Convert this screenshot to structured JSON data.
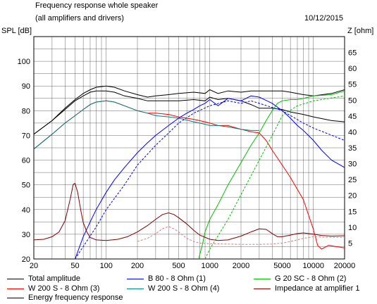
{
  "header": {
    "title": "Frequency response whole speaker",
    "subtitle": "(all amplifiers and drivers)",
    "date": "10/12/2015"
  },
  "chart_data": {
    "type": "line",
    "title": "Frequency response whole speaker",
    "subtitle": "(all amplifiers and drivers)",
    "ylabel_left": "SPL [dB]",
    "ylabel_right": "Z [ohm]",
    "x_scale": "log",
    "xlim": [
      20,
      20000
    ],
    "ylim_left": [
      20,
      110
    ],
    "ylim_right": [
      0,
      70
    ],
    "grid": true,
    "x_ticks": [
      {
        "v": 20,
        "label": "20"
      },
      {
        "v": 50,
        "label": "50"
      },
      {
        "v": 100,
        "label": "100"
      },
      {
        "v": 200,
        "label": "200"
      },
      {
        "v": 500,
        "label": "500"
      },
      {
        "v": 1000,
        "label": "1000"
      },
      {
        "v": 2000,
        "label": "2000"
      },
      {
        "v": 5000,
        "label": "5000"
      },
      {
        "v": 10000,
        "label": "10000"
      },
      {
        "v": 20000,
        "label": "20000"
      }
    ],
    "y_ticks_left": [
      20,
      30,
      40,
      50,
      60,
      70,
      80,
      90,
      100
    ],
    "y_ticks_right": [
      5,
      10,
      15,
      20,
      25,
      30,
      35,
      40,
      45,
      50,
      55,
      60,
      65
    ],
    "series": [
      {
        "name": "Total amplitude",
        "axis": "left",
        "color": "#000000",
        "dash": false,
        "points": [
          [
            20,
            70.5
          ],
          [
            30,
            76
          ],
          [
            40,
            81
          ],
          [
            50,
            84.5
          ],
          [
            60,
            87
          ],
          [
            70,
            88.5
          ],
          [
            80,
            89.5
          ],
          [
            100,
            90
          ],
          [
            120,
            89.5
          ],
          [
            150,
            88
          ],
          [
            200,
            86.5
          ],
          [
            250,
            85.5
          ],
          [
            300,
            86
          ],
          [
            400,
            86.5
          ],
          [
            500,
            87
          ],
          [
            700,
            87.5
          ],
          [
            900,
            87
          ],
          [
            1000,
            88.5
          ],
          [
            1200,
            87
          ],
          [
            1500,
            88
          ],
          [
            2000,
            87.5
          ],
          [
            2500,
            88
          ],
          [
            3000,
            88
          ],
          [
            4000,
            88
          ],
          [
            5000,
            88
          ],
          [
            6000,
            87.5
          ],
          [
            8000,
            86.5
          ],
          [
            10000,
            86
          ],
          [
            15000,
            87
          ],
          [
            20000,
            88.5
          ]
        ]
      },
      {
        "name": "Energy frequency response",
        "axis": "left",
        "color": "#000000",
        "dash": false,
        "points": [
          [
            20,
            70.5
          ],
          [
            30,
            76
          ],
          [
            40,
            80.5
          ],
          [
            50,
            84
          ],
          [
            60,
            86
          ],
          [
            70,
            87.5
          ],
          [
            80,
            88
          ],
          [
            100,
            88
          ],
          [
            120,
            87.5
          ],
          [
            150,
            86
          ],
          [
            200,
            85
          ],
          [
            250,
            84
          ],
          [
            300,
            84
          ],
          [
            400,
            84
          ],
          [
            500,
            84
          ],
          [
            700,
            84.5
          ],
          [
            900,
            84
          ],
          [
            1000,
            85.5
          ],
          [
            1200,
            84.5
          ],
          [
            1500,
            85
          ],
          [
            2000,
            84
          ],
          [
            2500,
            82.5
          ],
          [
            3000,
            81
          ],
          [
            4000,
            81
          ],
          [
            5000,
            80.5
          ],
          [
            6000,
            79.5
          ],
          [
            8000,
            78.5
          ],
          [
            10000,
            77.5
          ],
          [
            15000,
            76
          ],
          [
            20000,
            75.5
          ]
        ]
      },
      {
        "name": "W 200 S - 8 Ohm (3)",
        "axis": "left",
        "color": "#ff0000",
        "dash": false,
        "points": [
          [
            20,
            64.5
          ],
          [
            30,
            70.5
          ],
          [
            40,
            75
          ],
          [
            50,
            78
          ],
          [
            60,
            80.5
          ],
          [
            70,
            82.5
          ],
          [
            80,
            83.5
          ],
          [
            100,
            84
          ],
          [
            120,
            83.5
          ],
          [
            150,
            82
          ],
          [
            200,
            80
          ],
          [
            250,
            79
          ],
          [
            300,
            79
          ],
          [
            400,
            78.5
          ],
          [
            500,
            77.5
          ],
          [
            700,
            76.5
          ],
          [
            900,
            75.5
          ],
          [
            1000,
            75
          ],
          [
            1200,
            74
          ],
          [
            1500,
            74
          ],
          [
            2000,
            72.5
          ],
          [
            2500,
            71.5
          ],
          [
            3000,
            71
          ],
          [
            3500,
            68
          ],
          [
            4000,
            64
          ],
          [
            5000,
            58
          ],
          [
            6000,
            53
          ],
          [
            8000,
            44
          ],
          [
            10000,
            32
          ],
          [
            11000,
            25.5
          ],
          [
            12000,
            24
          ],
          [
            14000,
            25.5
          ],
          [
            20000,
            24.5
          ]
        ]
      },
      {
        "name": "W 200 S - 8 Ohm (4)",
        "axis": "left",
        "color": "#008080",
        "dash": false,
        "points": [
          [
            20,
            64.5
          ],
          [
            30,
            70.5
          ],
          [
            40,
            75
          ],
          [
            50,
            78
          ],
          [
            60,
            80.5
          ],
          [
            70,
            82.5
          ],
          [
            80,
            83.5
          ],
          [
            100,
            84
          ],
          [
            120,
            83.5
          ],
          [
            150,
            82
          ],
          [
            200,
            80
          ],
          [
            250,
            79
          ],
          [
            300,
            78
          ],
          [
            400,
            77.5
          ],
          [
            500,
            77
          ],
          [
            700,
            75.5
          ],
          [
            900,
            74.5
          ],
          [
            1000,
            74
          ],
          [
            1200,
            74
          ],
          [
            1500,
            73.5
          ],
          [
            2000,
            72.5
          ],
          [
            2500,
            72
          ],
          [
            3000,
            72
          ]
        ]
      },
      {
        "name": "B 80 - 8 Ohm (1)",
        "axis": "left",
        "color": "#0000ff",
        "dash": false,
        "points": [
          [
            50,
            20
          ],
          [
            60,
            29
          ],
          [
            70,
            35
          ],
          [
            80,
            40
          ],
          [
            100,
            47
          ],
          [
            120,
            52
          ],
          [
            150,
            57
          ],
          [
            200,
            63
          ],
          [
            250,
            67
          ],
          [
            300,
            70
          ],
          [
            400,
            74
          ],
          [
            500,
            77
          ],
          [
            600,
            79
          ],
          [
            700,
            80.5
          ],
          [
            800,
            82
          ],
          [
            900,
            83
          ],
          [
            1000,
            84.5
          ],
          [
            1200,
            82
          ],
          [
            1500,
            85
          ],
          [
            2000,
            84
          ],
          [
            2500,
            86
          ],
          [
            3000,
            85.5
          ],
          [
            4000,
            83
          ],
          [
            5000,
            80
          ],
          [
            6000,
            77
          ],
          [
            7000,
            74
          ],
          [
            8000,
            72
          ],
          [
            10000,
            68
          ],
          [
            12000,
            64
          ],
          [
            15000,
            60
          ],
          [
            20000,
            57
          ]
        ]
      },
      {
        "name": "B 80 - 8 Ohm (1) dashed",
        "axis": "left",
        "color": "#0000ff",
        "dash": true,
        "points": [
          [
            50,
            20
          ],
          [
            60,
            25
          ],
          [
            80,
            33
          ],
          [
            100,
            40
          ],
          [
            150,
            50
          ],
          [
            200,
            58
          ],
          [
            300,
            66
          ],
          [
            400,
            71
          ],
          [
            500,
            75
          ],
          [
            700,
            79
          ],
          [
            1000,
            82
          ],
          [
            1500,
            84
          ],
          [
            2000,
            83
          ],
          [
            2500,
            84
          ],
          [
            3000,
            83
          ],
          [
            5000,
            80
          ],
          [
            8000,
            75
          ],
          [
            10000,
            73
          ],
          [
            20000,
            68
          ]
        ]
      },
      {
        "name": "G 20 SC - 8 Ohm (2)",
        "axis": "left",
        "color": "#00c000",
        "dash": false,
        "points": [
          [
            780,
            20
          ],
          [
            850,
            26
          ],
          [
            900,
            31
          ],
          [
            1000,
            36
          ],
          [
            1200,
            42
          ],
          [
            1500,
            50
          ],
          [
            2000,
            59
          ],
          [
            2500,
            66
          ],
          [
            3000,
            71
          ],
          [
            3500,
            76
          ],
          [
            4000,
            80
          ],
          [
            4500,
            83
          ],
          [
            5000,
            84
          ],
          [
            6000,
            84.5
          ],
          [
            7000,
            84.5
          ],
          [
            8000,
            85
          ],
          [
            10000,
            86
          ],
          [
            15000,
            86.5
          ],
          [
            20000,
            88
          ]
        ]
      },
      {
        "name": "G 20 SC - 8 Ohm (2) dashed",
        "axis": "left",
        "color": "#00c000",
        "dash": true,
        "points": [
          [
            900,
            20
          ],
          [
            1000,
            24
          ],
          [
            1500,
            36
          ],
          [
            2000,
            46
          ],
          [
            3000,
            60
          ],
          [
            4000,
            70
          ],
          [
            5000,
            78
          ],
          [
            7000,
            82
          ],
          [
            10000,
            84
          ],
          [
            20000,
            86
          ]
        ]
      },
      {
        "name": "Impedance at amplifier 1",
        "axis": "right",
        "color": "#800000",
        "dash": false,
        "points": [
          [
            20,
            6
          ],
          [
            25,
            6.2
          ],
          [
            30,
            7
          ],
          [
            35,
            8.5
          ],
          [
            40,
            12
          ],
          [
            45,
            19
          ],
          [
            48,
            23.5
          ],
          [
            50,
            23.8
          ],
          [
            53,
            21
          ],
          [
            57,
            15
          ],
          [
            60,
            11.5
          ],
          [
            65,
            8.5
          ],
          [
            70,
            6.8
          ],
          [
            80,
            6
          ],
          [
            100,
            5.8
          ],
          [
            130,
            6.2
          ],
          [
            160,
            7
          ],
          [
            200,
            8.5
          ],
          [
            250,
            10.5
          ],
          [
            300,
            12.5
          ],
          [
            350,
            14
          ],
          [
            400,
            14.5
          ],
          [
            450,
            14
          ],
          [
            500,
            13
          ],
          [
            600,
            11
          ],
          [
            700,
            9
          ],
          [
            800,
            7.5
          ],
          [
            1000,
            6.2
          ],
          [
            1200,
            5.8
          ],
          [
            1500,
            6
          ],
          [
            2000,
            7.2
          ],
          [
            2500,
            8.5
          ],
          [
            3000,
            9.5
          ],
          [
            3500,
            9.3
          ],
          [
            4000,
            8
          ],
          [
            4500,
            7
          ],
          [
            5000,
            7
          ],
          [
            6000,
            7.5
          ],
          [
            7000,
            8
          ],
          [
            8000,
            8.2
          ],
          [
            10000,
            7.8
          ],
          [
            12000,
            7.4
          ],
          [
            15000,
            7.2
          ],
          [
            20000,
            7.3
          ]
        ]
      },
      {
        "name": "Impedance at amplifier 1 dashed",
        "axis": "right",
        "color": "#d08080",
        "dash": true,
        "points": [
          [
            200,
            5.5
          ],
          [
            250,
            6.5
          ],
          [
            300,
            8
          ],
          [
            350,
            9.5
          ],
          [
            400,
            10.2
          ],
          [
            450,
            9.5
          ],
          [
            500,
            8.5
          ],
          [
            600,
            6.5
          ],
          [
            700,
            5.5
          ],
          [
            800,
            5
          ],
          [
            1000,
            4.8
          ],
          [
            2000,
            4.6
          ],
          [
            3000,
            4.6
          ],
          [
            4000,
            4.7
          ],
          [
            5000,
            5
          ],
          [
            6000,
            5.5
          ],
          [
            8000,
            6.5
          ],
          [
            10000,
            7
          ],
          [
            15000,
            6.8
          ],
          [
            20000,
            6.8
          ]
        ]
      }
    ],
    "legend": [
      {
        "label": "Total amplitude",
        "color": "#000000",
        "pos": "left"
      },
      {
        "label": "B 80 - 8 Ohm (1)",
        "color": "#0000ff",
        "pos": "middle"
      },
      {
        "label": "G 20 SC - 8 Ohm (2)",
        "color": "#00c000",
        "pos": "right"
      },
      {
        "label": "W 200 S - 8 Ohm (3)",
        "color": "#ff0000",
        "pos": "left"
      },
      {
        "label": "W 200 S - 8 Ohm (4)",
        "color": "#008080",
        "pos": "middle"
      },
      {
        "label": "Impedance at amplifier 1",
        "color": "#800000",
        "pos": "right"
      },
      {
        "label": "Energy frequency response",
        "color": "#000000",
        "pos": "left"
      }
    ]
  }
}
